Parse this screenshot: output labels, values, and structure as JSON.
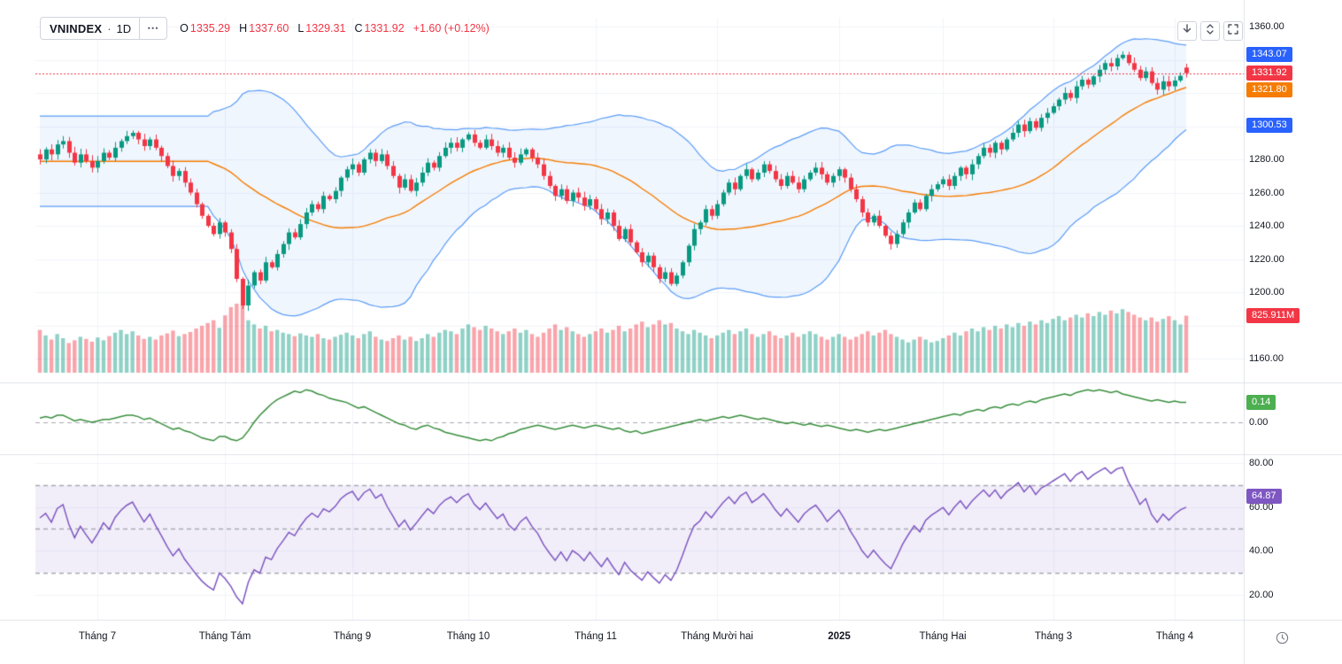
{
  "header": {
    "symbol": "VNINDEX",
    "separator": "·",
    "interval": "1D",
    "more_label": "⋯",
    "ohlc": [
      {
        "label": "O",
        "value": "1335.29"
      },
      {
        "label": "H",
        "value": "1337.60"
      },
      {
        "label": "L",
        "value": "1329.31"
      },
      {
        "label": "C",
        "value": "1331.92"
      }
    ],
    "change": "+1.60 (+0.12%)"
  },
  "toolbar": {
    "buttons": [
      {
        "name": "scroll-to-latest-button",
        "icon": "arrow-down-icon"
      },
      {
        "name": "maximize-pane-button",
        "icon": "expand-panes-icon"
      },
      {
        "name": "fullscreen-button",
        "icon": "fullscreen-icon"
      }
    ]
  },
  "time_axis_corner": {
    "icon": "clock-icon"
  },
  "colors": {
    "up": "#089981",
    "down": "#f23645",
    "vol_up": "rgba(8,153,129,0.45)",
    "vol_down": "rgba(242,54,69,0.45)",
    "bb_line": "#5b9cf6",
    "bb_fill": "rgba(91,156,246,0.09)",
    "bb_mid": "#f57c00",
    "osc": "#388e3c",
    "rsi": "#7e57c2",
    "rsi_fill": "rgba(126,87,194,0.10)",
    "grid": "#f0f3fa",
    "axis_text": "#131722",
    "muted": "#787b86",
    "badge_blue": "#2962ff",
    "badge_red": "#f23645",
    "badge_orange": "#f57c00",
    "badge_green": "#4caf50",
    "badge_purple": "#7e57c2",
    "separator": "#e0e3eb",
    "dashed": "#a8aab3"
  },
  "chart_data": {
    "type": "candlestick",
    "symbol": "VNINDEX",
    "interval": "1D",
    "indicators": [
      "Bollinger Bands with orange middle SMA",
      "Volume",
      "momentum oscillator (zero line)",
      "RSI with 70/50/30 dashed bands"
    ],
    "price_ylim": [
      1160,
      1360
    ],
    "osc_visible_range": [
      -0.24,
      0.29
    ],
    "rsi_ylim": [
      10,
      85
    ],
    "rsi_bands": [
      70,
      50,
      30
    ],
    "months": [
      {
        "label": null,
        "count": 10
      },
      {
        "label": "Tháng 7",
        "count": 22
      },
      {
        "label": "Tháng Tám",
        "count": 22
      },
      {
        "label": "Tháng 9",
        "count": 20
      },
      {
        "label": "Tháng 10",
        "count": 22
      },
      {
        "label": "Tháng 11",
        "count": 21
      },
      {
        "label": "Tháng Mười hai",
        "count": 21
      },
      {
        "label": "2025",
        "count": 18,
        "bold": true
      },
      {
        "label": "Tháng Hai",
        "count": 19
      },
      {
        "label": "Tháng 3",
        "count": 21
      },
      {
        "label": "Tháng 4",
        "count": 3
      }
    ],
    "closes": [
      1280,
      1286,
      1283,
      1289,
      1291,
      1284,
      1278,
      1283,
      1279,
      1275,
      1279,
      1284,
      1281,
      1287,
      1291,
      1294,
      1296,
      1292,
      1288,
      1292,
      1287,
      1282,
      1276,
      1270,
      1273,
      1266,
      1260,
      1253,
      1246,
      1240,
      1235,
      1242,
      1236,
      1226,
      1208,
      1192,
      1204,
      1212,
      1207,
      1218,
      1215,
      1223,
      1229,
      1236,
      1233,
      1241,
      1248,
      1253,
      1250,
      1258,
      1256,
      1261,
      1269,
      1274,
      1277,
      1272,
      1280,
      1284,
      1279,
      1283,
      1276,
      1270,
      1263,
      1268,
      1261,
      1266,
      1272,
      1278,
      1275,
      1282,
      1287,
      1290,
      1287,
      1292,
      1295,
      1290,
      1287,
      1292,
      1288,
      1284,
      1287,
      1281,
      1278,
      1283,
      1286,
      1281,
      1277,
      1270,
      1264,
      1258,
      1262,
      1255,
      1260,
      1257,
      1252,
      1256,
      1250,
      1244,
      1248,
      1240,
      1232,
      1238,
      1230,
      1224,
      1218,
      1222,
      1215,
      1208,
      1212,
      1205,
      1210,
      1218,
      1228,
      1238,
      1242,
      1250,
      1246,
      1253,
      1260,
      1266,
      1262,
      1270,
      1274,
      1268,
      1272,
      1277,
      1273,
      1268,
      1264,
      1270,
      1266,
      1262,
      1268,
      1272,
      1275,
      1271,
      1266,
      1270,
      1274,
      1269,
      1262,
      1256,
      1248,
      1242,
      1246,
      1240,
      1234,
      1229,
      1235,
      1242,
      1248,
      1254,
      1250,
      1258,
      1262,
      1265,
      1268,
      1264,
      1270,
      1275,
      1271,
      1277,
      1282,
      1287,
      1284,
      1290,
      1286,
      1292,
      1296,
      1301,
      1297,
      1303,
      1299,
      1305,
      1308,
      1312,
      1316,
      1320,
      1317,
      1324,
      1328,
      1325,
      1330,
      1334,
      1338,
      1336,
      1341,
      1343,
      1338,
      1334,
      1329,
      1333,
      1326,
      1322,
      1327,
      1324,
      1327.5,
      1330.32,
      1331.92
    ],
    "volumes_m": [
      620,
      540,
      480,
      560,
      500,
      430,
      470,
      520,
      490,
      450,
      510,
      470,
      530,
      580,
      620,
      560,
      600,
      540,
      490,
      520,
      480,
      540,
      570,
      610,
      530,
      560,
      590,
      640,
      680,
      720,
      760,
      650,
      830,
      950,
      1000,
      980,
      760,
      700,
      640,
      680,
      600,
      620,
      580,
      560,
      530,
      570,
      540,
      520,
      560,
      500,
      480,
      520,
      550,
      580,
      540,
      500,
      560,
      600,
      520,
      480,
      460,
      500,
      540,
      480,
      520,
      460,
      500,
      560,
      520,
      580,
      620,
      600,
      560,
      640,
      700,
      660,
      620,
      680,
      640,
      600,
      560,
      600,
      640,
      580,
      620,
      560,
      520,
      580,
      640,
      700,
      620,
      660,
      600,
      560,
      520,
      560,
      600,
      640,
      580,
      620,
      680,
      600,
      640,
      700,
      740,
      660,
      700,
      760,
      700,
      720,
      640,
      600,
      560,
      620,
      580,
      540,
      500,
      540,
      580,
      620,
      560,
      600,
      640,
      560,
      520,
      560,
      600,
      540,
      500,
      540,
      580,
      520,
      560,
      600,
      560,
      520,
      480,
      520,
      560,
      520,
      480,
      520,
      560,
      600,
      540,
      580,
      620,
      560,
      520,
      480,
      440,
      480,
      520,
      480,
      440,
      460,
      500,
      540,
      580,
      540,
      600,
      640,
      600,
      660,
      620,
      680,
      640,
      700,
      660,
      720,
      680,
      740,
      700,
      760,
      720,
      780,
      820,
      760,
      800,
      840,
      800,
      860,
      820,
      880,
      840,
      900,
      860,
      920,
      880,
      840,
      800,
      760,
      800,
      740,
      780,
      820,
      760,
      700,
      825.911
    ],
    "oscillator": [
      0.03,
      0.04,
      0.03,
      0.05,
      0.05,
      0.03,
      0.01,
      0.02,
      0.01,
      0.0,
      0.01,
      0.02,
      0.02,
      0.03,
      0.04,
      0.05,
      0.05,
      0.04,
      0.02,
      0.03,
      0.01,
      -0.01,
      -0.03,
      -0.05,
      -0.04,
      -0.06,
      -0.07,
      -0.09,
      -0.11,
      -0.12,
      -0.13,
      -0.1,
      -0.1,
      -0.12,
      -0.13,
      -0.11,
      -0.06,
      0.0,
      0.05,
      0.09,
      0.13,
      0.16,
      0.18,
      0.2,
      0.22,
      0.21,
      0.23,
      0.22,
      0.2,
      0.19,
      0.17,
      0.16,
      0.15,
      0.14,
      0.12,
      0.1,
      0.11,
      0.09,
      0.07,
      0.05,
      0.03,
      0.01,
      -0.01,
      -0.02,
      -0.04,
      -0.05,
      -0.03,
      -0.02,
      -0.04,
      -0.05,
      -0.07,
      -0.08,
      -0.09,
      -0.1,
      -0.11,
      -0.12,
      -0.13,
      -0.12,
      -0.13,
      -0.11,
      -0.1,
      -0.08,
      -0.07,
      -0.05,
      -0.04,
      -0.03,
      -0.02,
      -0.03,
      -0.04,
      -0.05,
      -0.04,
      -0.03,
      -0.02,
      -0.03,
      -0.04,
      -0.03,
      -0.02,
      -0.03,
      -0.04,
      -0.05,
      -0.04,
      -0.06,
      -0.07,
      -0.06,
      -0.08,
      -0.07,
      -0.06,
      -0.05,
      -0.04,
      -0.03,
      -0.02,
      -0.01,
      0.0,
      0.01,
      0.02,
      0.01,
      0.02,
      0.03,
      0.04,
      0.03,
      0.04,
      0.05,
      0.04,
      0.03,
      0.02,
      0.03,
      0.02,
      0.01,
      0.0,
      -0.01,
      0.0,
      -0.01,
      -0.02,
      -0.01,
      -0.02,
      -0.03,
      -0.02,
      -0.03,
      -0.04,
      -0.05,
      -0.06,
      -0.05,
      -0.06,
      -0.07,
      -0.06,
      -0.05,
      -0.06,
      -0.05,
      -0.04,
      -0.03,
      -0.02,
      -0.01,
      0.0,
      0.01,
      0.02,
      0.03,
      0.04,
      0.05,
      0.06,
      0.05,
      0.07,
      0.08,
      0.09,
      0.08,
      0.1,
      0.11,
      0.1,
      0.12,
      0.13,
      0.12,
      0.14,
      0.15,
      0.14,
      0.16,
      0.17,
      0.18,
      0.19,
      0.2,
      0.19,
      0.21,
      0.22,
      0.23,
      0.22,
      0.23,
      0.22,
      0.21,
      0.22,
      0.2,
      0.19,
      0.18,
      0.17,
      0.16,
      0.15,
      0.16,
      0.15,
      0.14,
      0.15,
      0.14,
      0.14
    ],
    "price_ticks": [
      {
        "value": 1360,
        "label": "1360.00"
      },
      {
        "value": 1280,
        "label": "1280.00"
      },
      {
        "value": 1260,
        "label": "1260.00"
      },
      {
        "value": 1240,
        "label": "1240.00"
      },
      {
        "value": 1220,
        "label": "1220.00"
      },
      {
        "value": 1200,
        "label": "1200.00"
      },
      {
        "value": 1160,
        "label": "1160.00"
      }
    ],
    "osc_ticks": [
      {
        "value": 0,
        "label": "0.00"
      }
    ],
    "rsi_ticks": [
      {
        "value": 80,
        "label": "80.00"
      },
      {
        "value": 60,
        "label": "60.00"
      },
      {
        "value": 40,
        "label": "40.00"
      },
      {
        "value": 20,
        "label": "20.00"
      }
    ],
    "axis_badges": [
      {
        "name": "bb-upper-badge",
        "text": "1343.07",
        "color_key": "badge_blue",
        "scale": "price",
        "value": 1343.07
      },
      {
        "name": "last-price-badge",
        "text": "1331.92",
        "color_key": "badge_red",
        "scale": "price",
        "value": 1331.92
      },
      {
        "name": "bb-middle-badge",
        "text": "1321.80",
        "color_key": "badge_orange",
        "scale": "price",
        "value": 1321.8
      },
      {
        "name": "bb-lower-badge",
        "text": "1300.53",
        "color_key": "badge_blue",
        "scale": "price",
        "value": 1300.53
      },
      {
        "name": "volume-badge",
        "text": "825.911M",
        "color_key": "badge_red",
        "scale": "volume",
        "value": 825.911
      },
      {
        "name": "oscillator-badge",
        "text": "0.14",
        "color_key": "badge_green",
        "scale": "osc",
        "value": 0.14
      },
      {
        "name": "rsi-badge",
        "text": "64.87",
        "color_key": "badge_purple",
        "scale": "rsi",
        "value": 64.87
      }
    ],
    "last": {
      "open": 1335.29,
      "high": 1337.6,
      "low": 1329.31,
      "close": 1331.92,
      "change_text": "+1.60 (+0.12%)",
      "volume_text": "825.911M",
      "bb_upper": 1343.07,
      "bb_middle": 1321.8,
      "bb_lower": 1300.53,
      "oscillator": 0.14,
      "rsi": 64.87
    }
  }
}
